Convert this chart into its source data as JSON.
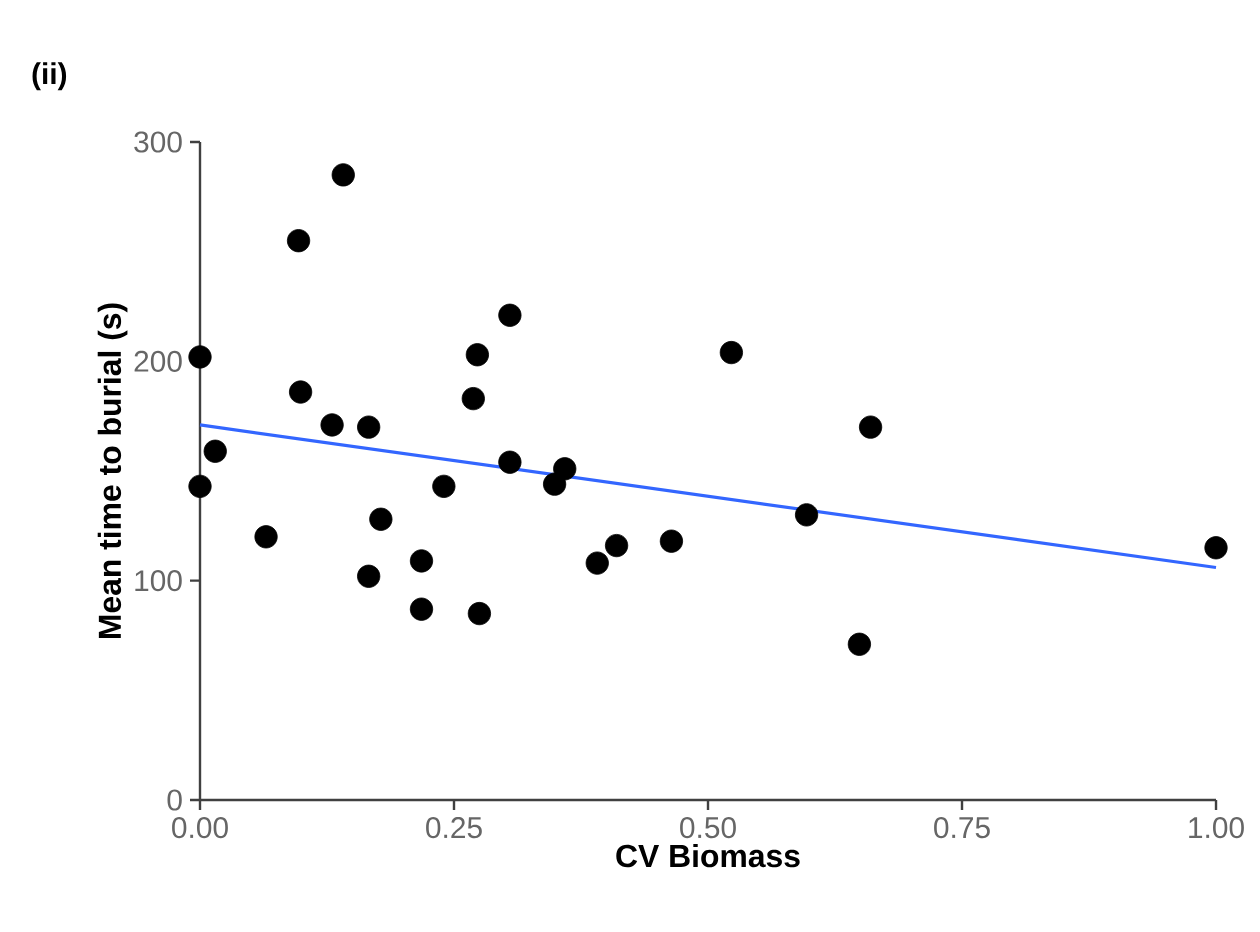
{
  "chart_data": {
    "type": "scatter",
    "title": "(ii)",
    "xlabel": "CV Biomass",
    "ylabel": "Mean time to burial (s)",
    "xlim": [
      0,
      1
    ],
    "ylim": [
      0,
      300
    ],
    "xticks": [
      {
        "value": 0,
        "label": "0.00"
      },
      {
        "value": 0.25,
        "label": "0.25"
      },
      {
        "value": 0.5,
        "label": "0.50"
      },
      {
        "value": 0.75,
        "label": "0.75"
      },
      {
        "value": 1,
        "label": "1.00"
      }
    ],
    "yticks": [
      0,
      100,
      200,
      300
    ],
    "grid": false,
    "series": [
      {
        "marker": "circle",
        "color": "#000000",
        "x": [
          0.0,
          0.015,
          0.0,
          0.065,
          0.097,
          0.141,
          0.099,
          0.13,
          0.166,
          0.178,
          0.166,
          0.218,
          0.218,
          0.24,
          0.269,
          0.273,
          0.305,
          0.275,
          0.305,
          0.349,
          0.359,
          0.391,
          0.41,
          0.464,
          0.523,
          0.66,
          0.597,
          0.649,
          1.0
        ],
        "values": [
          202,
          159,
          143,
          120,
          255,
          285,
          186,
          171,
          170,
          128,
          102,
          109,
          87,
          143,
          183,
          203,
          221,
          85,
          154,
          144,
          151,
          108,
          116,
          118,
          204,
          170,
          130,
          71,
          115
        ]
      },
      {
        "type": "line",
        "marker": "none",
        "color": "#3366ff",
        "x": [
          0,
          1
        ],
        "values": [
          171,
          106
        ]
      }
    ]
  }
}
